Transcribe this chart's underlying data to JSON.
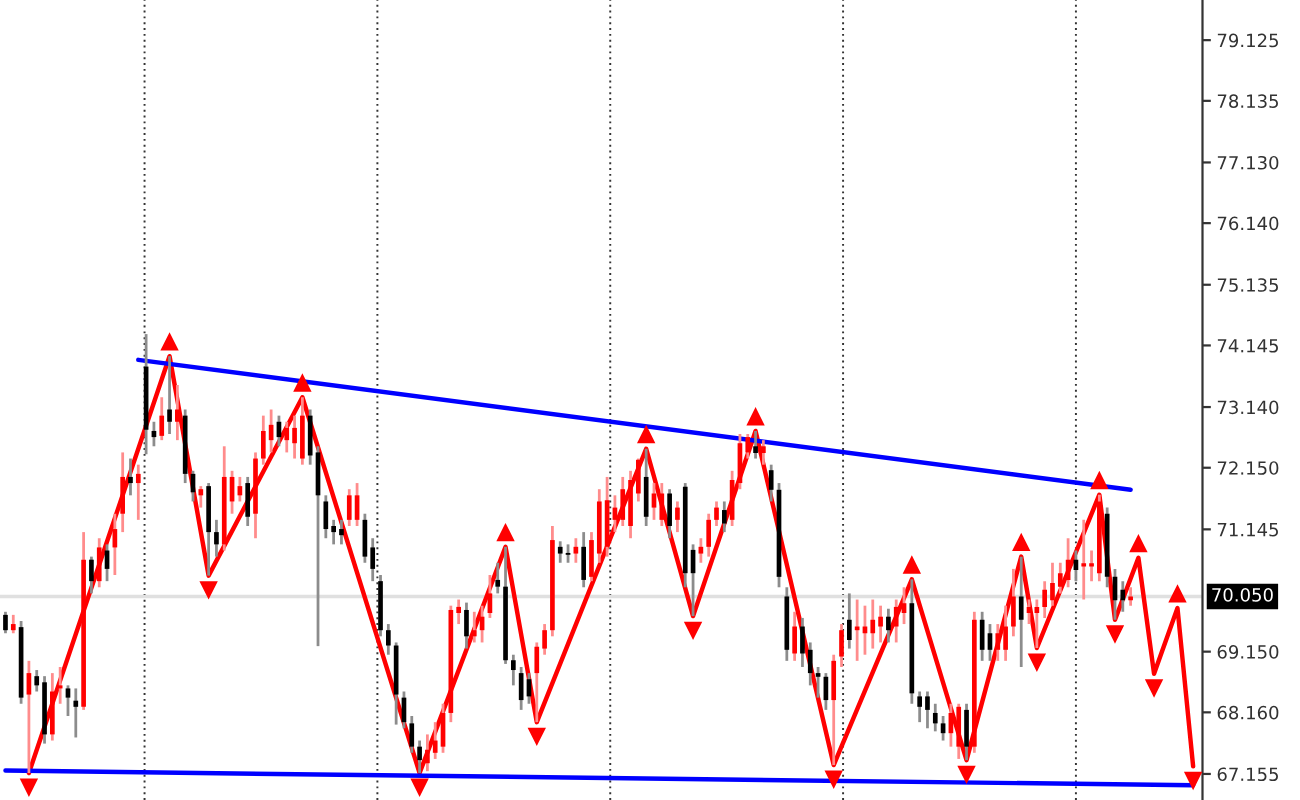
{
  "chart_data": {
    "type": "candlestick",
    "categories": [
      null,
      null,
      null,
      null,
      null,
      null,
      null,
      null,
      null,
      null,
      null,
      null,
      null,
      null,
      null,
      null,
      null,
      null,
      null,
      null,
      null,
      null,
      null,
      null,
      null,
      null,
      null,
      null,
      null,
      null,
      null,
      null,
      null,
      null,
      null,
      null,
      null,
      null,
      null,
      null,
      null,
      null,
      null,
      null,
      null,
      null,
      null,
      null,
      null,
      null,
      null,
      null,
      null,
      null,
      null,
      null,
      null,
      null,
      null,
      null,
      null,
      null,
      null,
      null,
      null,
      null,
      null,
      null,
      null,
      null,
      null,
      null,
      null,
      null,
      null,
      null,
      null,
      null,
      null,
      null,
      null,
      null,
      null,
      null,
      null,
      null,
      null,
      null,
      null,
      null,
      null,
      null,
      null,
      null,
      null,
      null,
      null,
      null,
      null,
      null,
      null,
      null,
      null,
      null,
      null,
      null,
      null,
      null,
      null,
      null,
      null,
      null,
      null,
      null,
      null,
      null,
      null,
      null,
      null,
      null,
      null,
      null,
      null,
      null,
      null,
      null,
      null,
      null,
      null,
      null,
      null,
      null,
      null,
      null,
      null,
      null,
      null,
      null,
      null,
      null,
      null,
      null,
      null,
      null,
      null,
      null,
      null,
      null,
      null,
      null,
      null,
      null,
      null
    ],
    "ohlc": [
      [
        69.75,
        69.8,
        69.45,
        69.5
      ],
      [
        69.5,
        69.75,
        69.45,
        69.6
      ],
      [
        69.55,
        69.65,
        68.3,
        68.4
      ],
      [
        68.45,
        69.0,
        67.17,
        68.8
      ],
      [
        68.75,
        68.85,
        68.5,
        68.6
      ],
      [
        68.65,
        68.75,
        67.65,
        67.8
      ],
      [
        67.8,
        68.8,
        67.7,
        68.5
      ],
      [
        68.55,
        68.9,
        68.3,
        68.6
      ],
      [
        68.55,
        68.6,
        68.1,
        68.4
      ],
      [
        68.35,
        68.55,
        67.75,
        68.25
      ],
      [
        68.25,
        71.1,
        68.2,
        70.65
      ],
      [
        70.65,
        70.7,
        70.1,
        70.3
      ],
      [
        70.3,
        71.0,
        70.2,
        70.85
      ],
      [
        70.8,
        70.9,
        70.3,
        70.5
      ],
      [
        70.85,
        71.4,
        70.4,
        71.15
      ],
      [
        71.4,
        72.4,
        71.1,
        72.0
      ],
      [
        72.0,
        72.3,
        71.7,
        71.9
      ],
      [
        71.9,
        72.2,
        71.3,
        72.05
      ],
      [
        73.8,
        74.33,
        72.37,
        72.77
      ],
      [
        72.75,
        72.9,
        72.5,
        72.65
      ],
      [
        72.67,
        73.3,
        72.6,
        73.0
      ],
      [
        73.1,
        73.97,
        72.7,
        72.9
      ],
      [
        72.9,
        73.5,
        72.6,
        73.1
      ],
      [
        73.0,
        73.1,
        71.9,
        72.05
      ],
      [
        72.05,
        72.1,
        71.6,
        71.75
      ],
      [
        71.7,
        71.85,
        71.5,
        71.8
      ],
      [
        71.85,
        71.9,
        70.39,
        71.1
      ],
      [
        71.1,
        71.3,
        70.7,
        70.9
      ],
      [
        70.9,
        72.5,
        70.8,
        72.0
      ],
      [
        71.6,
        72.1,
        71.4,
        72.0
      ],
      [
        71.7,
        72.0,
        71.6,
        71.85
      ],
      [
        71.9,
        72.0,
        71.2,
        71.35
      ],
      [
        71.4,
        72.4,
        71.0,
        72.3
      ],
      [
        72.3,
        73.0,
        72.2,
        72.75
      ],
      [
        72.6,
        73.1,
        72.4,
        72.85
      ],
      [
        72.9,
        73.0,
        72.5,
        72.65
      ],
      [
        72.6,
        72.9,
        72.4,
        72.8
      ],
      [
        72.55,
        73.0,
        72.3,
        72.8
      ],
      [
        72.3,
        73.3,
        72.2,
        73.0
      ],
      [
        73.0,
        73.1,
        72.2,
        72.35
      ],
      [
        72.4,
        72.5,
        69.24,
        71.7
      ],
      [
        71.6,
        71.7,
        71.0,
        71.15
      ],
      [
        71.2,
        71.3,
        70.9,
        71.1
      ],
      [
        71.15,
        71.3,
        70.9,
        71.05
      ],
      [
        71.3,
        71.8,
        71.2,
        71.7
      ],
      [
        71.3,
        71.9,
        71.2,
        71.7
      ],
      [
        71.3,
        71.4,
        70.6,
        70.7
      ],
      [
        70.85,
        71.0,
        70.3,
        70.5
      ],
      [
        70.3,
        70.4,
        69.4,
        69.5
      ],
      [
        69.5,
        69.6,
        69.1,
        69.25
      ],
      [
        69.25,
        69.3,
        67.96,
        68.45
      ],
      [
        68.4,
        68.5,
        67.9,
        68.0
      ],
      [
        67.98,
        68.1,
        67.5,
        67.6
      ],
      [
        67.6,
        67.7,
        67.17,
        67.38
      ],
      [
        67.33,
        67.8,
        67.2,
        67.55
      ],
      [
        67.5,
        68.0,
        67.4,
        67.7
      ],
      [
        67.6,
        68.3,
        67.5,
        68.15
      ],
      [
        68.15,
        69.9,
        68.0,
        69.83
      ],
      [
        69.78,
        70.0,
        69.6,
        69.88
      ],
      [
        69.83,
        69.95,
        69.2,
        69.4
      ],
      [
        69.4,
        69.8,
        69.3,
        69.5
      ],
      [
        69.5,
        69.9,
        69.3,
        69.72
      ],
      [
        69.78,
        70.4,
        69.7,
        70.1
      ],
      [
        70.32,
        70.6,
        70.1,
        70.21
      ],
      [
        70.21,
        70.86,
        68.95,
        69.01
      ],
      [
        69.01,
        69.1,
        68.6,
        68.85
      ],
      [
        68.8,
        68.9,
        68.2,
        68.36
      ],
      [
        68.7,
        68.8,
        68.3,
        68.42
      ],
      [
        68.8,
        69.3,
        68.0,
        69.23
      ],
      [
        69.2,
        69.6,
        69.1,
        69.5
      ],
      [
        69.5,
        71.2,
        69.4,
        70.97
      ],
      [
        70.86,
        70.95,
        70.6,
        70.75
      ],
      [
        70.76,
        70.9,
        70.6,
        70.73
      ],
      [
        70.75,
        71.0,
        70.6,
        70.86
      ],
      [
        70.86,
        71.1,
        70.2,
        70.32
      ],
      [
        70.37,
        71.1,
        70.3,
        70.97
      ],
      [
        70.75,
        71.8,
        70.6,
        71.6
      ],
      [
        70.86,
        72.0,
        70.7,
        71.62
      ],
      [
        71.3,
        71.7,
        71.1,
        71.5
      ],
      [
        71.3,
        72.0,
        71.2,
        71.8
      ],
      [
        71.2,
        72.1,
        71.0,
        71.95
      ],
      [
        71.73,
        72.3,
        71.6,
        72.28
      ],
      [
        72.0,
        72.46,
        71.2,
        71.35
      ],
      [
        71.5,
        71.9,
        71.3,
        71.73
      ],
      [
        71.3,
        71.9,
        71.2,
        71.73
      ],
      [
        71.73,
        71.8,
        71.0,
        71.2
      ],
      [
        71.3,
        71.6,
        71.1,
        71.5
      ],
      [
        71.84,
        71.9,
        70.2,
        70.43
      ],
      [
        70.81,
        70.9,
        69.73,
        70.43
      ],
      [
        70.75,
        71.0,
        70.6,
        70.86
      ],
      [
        70.86,
        71.4,
        70.7,
        71.3
      ],
      [
        71.3,
        71.6,
        71.2,
        71.5
      ],
      [
        71.46,
        71.6,
        71.1,
        71.24
      ],
      [
        71.3,
        72.1,
        71.2,
        71.95
      ],
      [
        71.9,
        72.7,
        71.8,
        72.55
      ],
      [
        72.4,
        72.7,
        72.3,
        72.65
      ],
      [
        72.5,
        72.75,
        72.3,
        72.39
      ],
      [
        72.39,
        72.6,
        72.2,
        72.5
      ],
      [
        72.11,
        72.2,
        71.6,
        71.79
      ],
      [
        71.79,
        71.9,
        70.2,
        70.37
      ],
      [
        70.05,
        70.2,
        69.0,
        69.18
      ],
      [
        69.12,
        69.8,
        69.0,
        69.56
      ],
      [
        69.56,
        69.7,
        68.9,
        69.12
      ],
      [
        69.18,
        69.3,
        68.6,
        68.8
      ],
      [
        68.8,
        68.9,
        68.4,
        68.74
      ],
      [
        68.74,
        68.8,
        68.2,
        68.36
      ],
      [
        68.36,
        69.1,
        67.3,
        69.0
      ],
      [
        69.07,
        69.6,
        68.9,
        69.5
      ],
      [
        69.67,
        70.1,
        69.2,
        69.34
      ],
      [
        69.5,
        70.0,
        69.0,
        69.56
      ],
      [
        69.45,
        69.9,
        69.1,
        69.56
      ],
      [
        69.45,
        70.0,
        69.2,
        69.67
      ],
      [
        69.56,
        69.9,
        69.3,
        69.72
      ],
      [
        69.72,
        69.85,
        69.3,
        69.5
      ],
      [
        69.56,
        70.0,
        69.3,
        69.88
      ],
      [
        69.78,
        70.2,
        69.6,
        69.94
      ],
      [
        69.94,
        70.33,
        68.3,
        68.47
      ],
      [
        68.42,
        68.5,
        68.0,
        68.25
      ],
      [
        68.42,
        68.5,
        67.9,
        68.2
      ],
      [
        68.15,
        68.3,
        67.85,
        67.98
      ],
      [
        67.98,
        68.1,
        67.7,
        67.82
      ],
      [
        67.82,
        68.3,
        67.6,
        68.15
      ],
      [
        67.6,
        68.3,
        67.4,
        68.25
      ],
      [
        68.2,
        68.3,
        67.38,
        67.6
      ],
      [
        67.6,
        69.8,
        67.5,
        69.67
      ],
      [
        69.67,
        69.8,
        69.0,
        69.18
      ],
      [
        69.45,
        69.6,
        69.0,
        69.18
      ],
      [
        69.18,
        69.6,
        69.0,
        69.45
      ],
      [
        69.18,
        69.9,
        69.0,
        69.56
      ],
      [
        69.56,
        70.5,
        69.4,
        70.05
      ],
      [
        70.05,
        70.7,
        68.9,
        69.67
      ],
      [
        69.78,
        70.0,
        69.6,
        69.88
      ],
      [
        69.78,
        70.0,
        69.21,
        69.88
      ],
      [
        69.88,
        70.3,
        69.7,
        70.16
      ],
      [
        69.99,
        70.6,
        69.9,
        70.27
      ],
      [
        70.21,
        70.6,
        70.1,
        70.43
      ],
      [
        70.32,
        71.0,
        70.2,
        70.65
      ],
      [
        70.65,
        70.8,
        70.3,
        70.48
      ],
      [
        70.54,
        71.3,
        70.0,
        70.59
      ],
      [
        70.54,
        70.8,
        70.3,
        70.59
      ],
      [
        70.43,
        71.71,
        70.3,
        71.6
      ],
      [
        71.4,
        71.5,
        70.2,
        70.37
      ],
      [
        70.37,
        70.5,
        69.67,
        69.99
      ],
      [
        70.16,
        70.3,
        69.8,
        69.99
      ],
      [
        69.99,
        70.2,
        69.9,
        70.05
      ],
      null,
      null,
      null,
      null,
      null,
      null,
      null,
      null
    ],
    "colors": [
      "#000000",
      "#ff0000",
      "#000000",
      "#ff0000",
      "#000000",
      "#000000",
      "#ff0000",
      "#ff0000",
      "#000000",
      "#000000",
      "#ff0000",
      "#000000",
      "#ff0000",
      "#000000",
      "#ff0000",
      "#ff0000",
      "#000000",
      "#ff0000",
      "#000000",
      "#000000",
      "#ff0000",
      "#000000",
      "#ff0000",
      "#000000",
      "#000000",
      "#ff0000",
      "#000000",
      "#000000",
      "#ff0000",
      "#ff0000",
      "#ff0000",
      "#000000",
      "#ff0000",
      "#ff0000",
      "#ff0000",
      "#000000",
      "#ff0000",
      "#ff0000",
      "#ff0000",
      "#000000",
      "#000000",
      "#000000",
      "#000000",
      "#000000",
      "#ff0000",
      "#ff0000",
      "#000000",
      "#000000",
      "#000000",
      "#000000",
      "#000000",
      "#000000",
      "#000000",
      "#000000",
      "#ff0000",
      "#ff0000",
      "#ff0000",
      "#ff0000",
      "#ff0000",
      "#000000",
      "#ff0000",
      "#ff0000",
      "#ff0000",
      "#000000",
      "#000000",
      "#000000",
      "#000000",
      "#000000",
      "#ff0000",
      "#ff0000",
      "#ff0000",
      "#000000",
      "#000000",
      "#ff0000",
      "#000000",
      "#ff0000",
      "#ff0000",
      "#ff0000",
      "#ff0000",
      "#ff0000",
      "#ff0000",
      "#ff0000",
      "#000000",
      "#ff0000",
      "#ff0000",
      "#000000",
      "#ff0000",
      "#000000",
      "#000000",
      "#ff0000",
      "#ff0000",
      "#ff0000",
      "#000000",
      "#ff0000",
      "#ff0000",
      "#ff0000",
      "#000000",
      "#ff0000",
      "#000000",
      "#000000",
      "#000000",
      "#ff0000",
      "#000000",
      "#000000",
      "#000000",
      "#000000",
      "#ff0000",
      "#ff0000",
      "#000000",
      "#ff0000",
      "#ff0000",
      "#ff0000",
      "#ff0000",
      "#000000",
      "#ff0000",
      "#ff0000",
      "#000000",
      "#000000",
      "#000000",
      "#000000",
      "#000000",
      "#ff0000",
      "#ff0000",
      "#000000",
      "#ff0000",
      "#000000",
      "#000000",
      "#ff0000",
      "#ff0000",
      "#ff0000",
      "#000000",
      "#ff0000",
      "#ff0000",
      "#ff0000",
      "#ff0000",
      "#ff0000",
      "#ff0000",
      "#000000",
      "#ff0000",
      "#ff0000",
      "#ff0000",
      "#000000",
      "#000000",
      "#000000",
      "#ff0000",
      null,
      null,
      null,
      null,
      null,
      null,
      null,
      null
    ],
    "series": [
      {
        "type": "line",
        "color": "#ff0000",
        "values": [
          null,
          null,
          null,
          67.17,
          null,
          null,
          null,
          null,
          null,
          null,
          null,
          null,
          null,
          null,
          null,
          null,
          null,
          null,
          null,
          null,
          null,
          73.97,
          null,
          null,
          null,
          null,
          70.39,
          null,
          null,
          null,
          null,
          null,
          null,
          null,
          null,
          null,
          null,
          null,
          73.3,
          null,
          null,
          null,
          null,
          null,
          null,
          null,
          null,
          null,
          null,
          null,
          null,
          null,
          null,
          67.17,
          null,
          null,
          null,
          null,
          null,
          null,
          null,
          null,
          null,
          null,
          70.86,
          null,
          null,
          null,
          68.0,
          null,
          null,
          null,
          null,
          null,
          null,
          null,
          null,
          null,
          null,
          null,
          null,
          null,
          72.46,
          null,
          null,
          null,
          null,
          null,
          69.73,
          null,
          null,
          null,
          null,
          null,
          null,
          null,
          72.75,
          null,
          null,
          null,
          null,
          null,
          null,
          null,
          null,
          null,
          67.3,
          null,
          null,
          null,
          null,
          null,
          null,
          null,
          null,
          null,
          70.33,
          null,
          null,
          null,
          null,
          null,
          null,
          67.38,
          null,
          null,
          null,
          null,
          null,
          null,
          70.7,
          null,
          69.21,
          null,
          null,
          null,
          null,
          null,
          null,
          null,
          71.71,
          null,
          69.67,
          null,
          null,
          70.68,
          null,
          68.79,
          null,
          null,
          69.86,
          null,
          67.28
        ]
      },
      {
        "type": "line",
        "color": "#0000ff",
        "values": [
          null,
          null,
          null,
          null,
          null,
          null,
          null,
          null,
          null,
          null,
          null,
          null,
          null,
          null,
          null,
          null,
          null,
          73.91,
          null,
          null,
          null,
          null,
          null,
          null,
          null,
          null,
          null,
          null,
          null,
          null,
          null,
          null,
          null,
          null,
          null,
          null,
          null,
          null,
          null,
          null,
          null,
          null,
          null,
          null,
          null,
          null,
          null,
          null,
          null,
          null,
          null,
          null,
          null,
          null,
          null,
          null,
          null,
          null,
          null,
          null,
          null,
          null,
          null,
          null,
          null,
          null,
          null,
          null,
          null,
          null,
          null,
          null,
          null,
          null,
          null,
          null,
          null,
          null,
          null,
          null,
          null,
          null,
          null,
          null,
          null,
          null,
          null,
          null,
          null,
          null,
          null,
          null,
          null,
          null,
          null,
          null,
          null,
          null,
          null,
          null,
          null,
          null,
          null,
          null,
          null,
          null,
          null,
          null,
          null,
          null,
          null,
          null,
          null,
          null,
          null,
          null,
          null,
          null,
          null,
          null,
          null,
          null,
          null,
          null,
          null,
          null,
          null,
          null,
          null,
          null,
          null,
          null,
          null,
          null,
          null,
          null,
          null,
          null,
          null,
          null,
          null,
          null,
          null,
          null,
          71.79,
          null,
          null,
          null,
          null,
          null,
          null,
          null,
          null
        ]
      },
      {
        "type": "line",
        "color": "#0000ff",
        "values": [
          67.21,
          null,
          null,
          null,
          null,
          null,
          null,
          null,
          null,
          null,
          null,
          null,
          null,
          null,
          null,
          null,
          null,
          null,
          null,
          null,
          null,
          null,
          null,
          null,
          null,
          null,
          null,
          null,
          null,
          null,
          null,
          null,
          null,
          null,
          null,
          null,
          null,
          null,
          null,
          null,
          null,
          null,
          null,
          null,
          null,
          null,
          null,
          null,
          null,
          null,
          null,
          null,
          null,
          null,
          null,
          null,
          null,
          null,
          null,
          null,
          null,
          null,
          null,
          null,
          null,
          null,
          null,
          null,
          null,
          null,
          null,
          null,
          null,
          null,
          null,
          null,
          null,
          null,
          null,
          null,
          null,
          null,
          null,
          null,
          null,
          null,
          null,
          null,
          null,
          null,
          null,
          null,
          null,
          null,
          null,
          null,
          null,
          null,
          null,
          null,
          null,
          null,
          null,
          null,
          null,
          null,
          null,
          null,
          null,
          null,
          null,
          null,
          null,
          null,
          null,
          null,
          null,
          null,
          null,
          null,
          null,
          null,
          null,
          null,
          null,
          null,
          null,
          null,
          null,
          null,
          null,
          null,
          null,
          null,
          null,
          null,
          null,
          null,
          null,
          null,
          null,
          null,
          null,
          null,
          null,
          null,
          null,
          null,
          null,
          null,
          null,
          null,
          66.97
        ]
      }
    ],
    "ref_lines": [
      {
        "axis": "y",
        "value": 70.05,
        "label": "70.050",
        "color": "#e0e0e0"
      }
    ],
    "ylim": [
      66.73,
      79.78
    ],
    "yticks": [
      {
        "value": 67.155,
        "label": "67.155"
      },
      {
        "value": 68.16,
        "label": "68.160"
      },
      {
        "value": 69.15,
        "label": "69.150"
      },
      {
        "value": 71.145,
        "label": "71.145"
      },
      {
        "value": 72.15,
        "label": "72.150"
      },
      {
        "value": 73.14,
        "label": "73.140"
      },
      {
        "value": 74.145,
        "label": "74.145"
      },
      {
        "value": 75.135,
        "label": "75.135"
      },
      {
        "value": 76.14,
        "label": "76.140"
      },
      {
        "value": 77.13,
        "label": "77.130"
      },
      {
        "value": 78.135,
        "label": "78.135"
      },
      {
        "value": 79.125,
        "label": "79.125"
      }
    ],
    "tick_labels": "y"
  }
}
